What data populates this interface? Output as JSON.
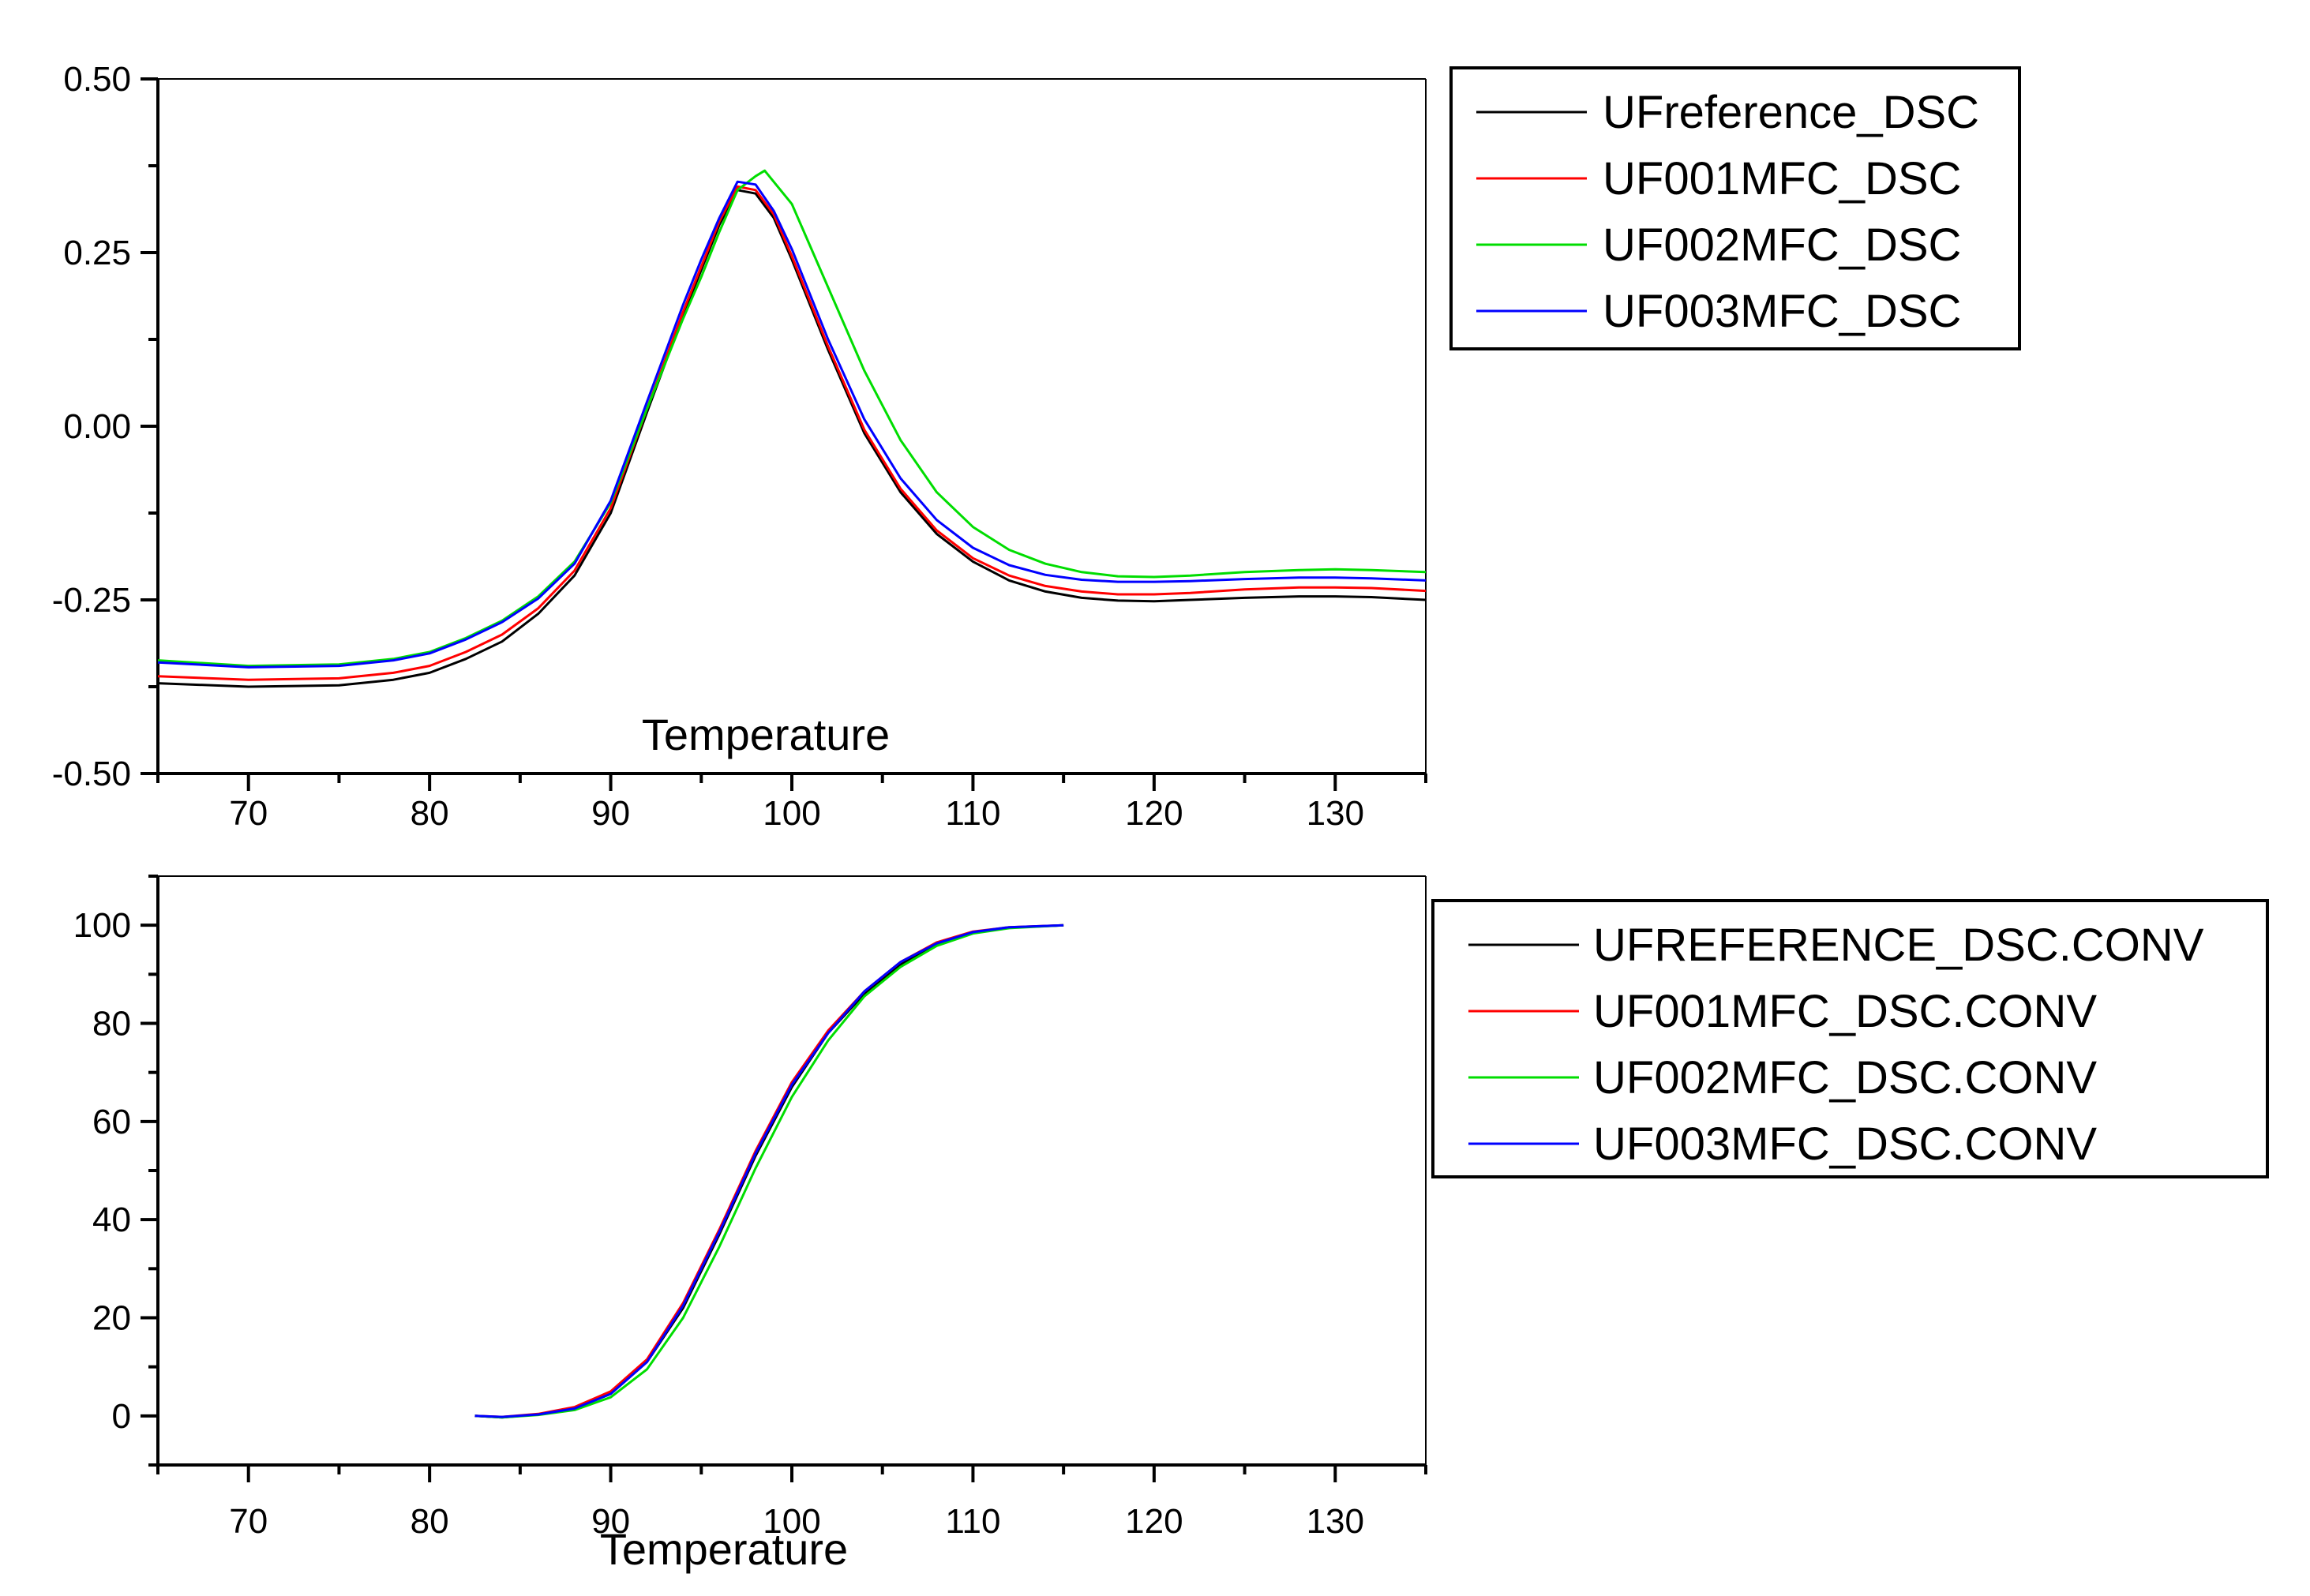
{
  "chart_data": [
    {
      "type": "line",
      "id": "dsc",
      "title": "",
      "xlabel": "Temperature",
      "ylabel": "",
      "xlim": [
        65,
        135
      ],
      "ylim": [
        -0.5,
        0.5
      ],
      "x_ticks": [
        70,
        80,
        90,
        100,
        110,
        120,
        130
      ],
      "y_ticks": [
        -0.5,
        -0.25,
        0.0,
        0.25,
        0.5
      ],
      "x_tick_labels": [
        "70",
        "80",
        "90",
        "100",
        "110",
        "120",
        "130"
      ],
      "y_tick_labels": [
        "-0.50",
        "-0.25",
        "0.00",
        "0.25",
        "0.50"
      ],
      "legend_position": "right-top",
      "series": [
        {
          "name": "UFreference_DSC",
          "color": "#000000",
          "x": [
            65,
            70,
            75,
            78,
            80,
            82,
            84,
            86,
            88,
            90,
            92,
            94,
            95,
            96,
            97,
            98,
            99,
            100,
            102,
            104,
            106,
            108,
            110,
            112,
            114,
            116,
            118,
            120,
            122,
            125,
            128,
            130,
            132,
            135
          ],
          "y": [
            -0.37,
            -0.375,
            -0.373,
            -0.365,
            -0.355,
            -0.335,
            -0.31,
            -0.27,
            -0.215,
            -0.125,
            0.02,
            0.16,
            0.225,
            0.29,
            0.34,
            0.335,
            0.3,
            0.24,
            0.11,
            -0.01,
            -0.095,
            -0.155,
            -0.195,
            -0.222,
            -0.238,
            -0.247,
            -0.251,
            -0.252,
            -0.25,
            -0.247,
            -0.245,
            -0.245,
            -0.246,
            -0.25
          ]
        },
        {
          "name": "UF001MFC_DSC",
          "color": "#ff0000",
          "x": [
            65,
            70,
            75,
            78,
            80,
            82,
            84,
            86,
            88,
            90,
            92,
            94,
            95,
            96,
            97,
            98,
            99,
            100,
            102,
            104,
            106,
            108,
            110,
            112,
            114,
            116,
            118,
            120,
            122,
            125,
            128,
            130,
            132,
            135
          ],
          "y": [
            -0.36,
            -0.365,
            -0.363,
            -0.355,
            -0.345,
            -0.325,
            -0.3,
            -0.262,
            -0.208,
            -0.118,
            0.025,
            0.165,
            0.23,
            0.295,
            0.345,
            0.34,
            0.305,
            0.245,
            0.115,
            -0.005,
            -0.09,
            -0.15,
            -0.19,
            -0.215,
            -0.23,
            -0.238,
            -0.242,
            -0.242,
            -0.24,
            -0.235,
            -0.232,
            -0.232,
            -0.233,
            -0.237
          ]
        },
        {
          "name": "UF002MFC_DSC",
          "color": "#00dd00",
          "x": [
            65,
            70,
            75,
            78,
            80,
            82,
            84,
            86,
            88,
            90,
            92,
            94,
            95,
            96,
            97,
            98,
            98.5,
            100,
            102,
            104,
            106,
            108,
            110,
            112,
            114,
            116,
            118,
            120,
            122,
            125,
            128,
            130,
            132,
            135
          ],
          "y": [
            -0.337,
            -0.345,
            -0.343,
            -0.335,
            -0.325,
            -0.305,
            -0.28,
            -0.245,
            -0.195,
            -0.11,
            0.025,
            0.155,
            0.215,
            0.28,
            0.34,
            0.36,
            0.368,
            0.32,
            0.2,
            0.08,
            -0.02,
            -0.095,
            -0.145,
            -0.178,
            -0.198,
            -0.21,
            -0.216,
            -0.217,
            -0.215,
            -0.21,
            -0.207,
            -0.206,
            -0.207,
            -0.21
          ]
        },
        {
          "name": "UF003MFC_DSC",
          "color": "#0000ff",
          "x": [
            65,
            70,
            75,
            78,
            80,
            82,
            84,
            86,
            88,
            90,
            92,
            94,
            95,
            96,
            97,
            98,
            99,
            100,
            102,
            104,
            106,
            108,
            110,
            112,
            114,
            116,
            118,
            120,
            122,
            125,
            128,
            130,
            132,
            135
          ],
          "y": [
            -0.34,
            -0.347,
            -0.345,
            -0.337,
            -0.327,
            -0.307,
            -0.282,
            -0.248,
            -0.198,
            -0.107,
            0.035,
            0.175,
            0.24,
            0.3,
            0.352,
            0.348,
            0.31,
            0.255,
            0.125,
            0.01,
            -0.075,
            -0.135,
            -0.175,
            -0.2,
            -0.214,
            -0.221,
            -0.224,
            -0.224,
            -0.223,
            -0.22,
            -0.218,
            -0.218,
            -0.219,
            -0.222
          ]
        }
      ]
    },
    {
      "type": "line",
      "id": "conv",
      "title": "",
      "xlabel": "Temperature",
      "ylabel": "",
      "xlim": [
        65,
        135
      ],
      "ylim": [
        -10,
        110
      ],
      "x_ticks": [
        70,
        80,
        90,
        100,
        110,
        120,
        130
      ],
      "y_ticks": [
        0,
        20,
        40,
        60,
        80,
        100
      ],
      "x_tick_labels": [
        "70",
        "80",
        "90",
        "100",
        "110",
        "120",
        "130"
      ],
      "y_tick_labels": [
        "0",
        "20",
        "40",
        "60",
        "80",
        "100"
      ],
      "legend_position": "right-middle",
      "series": [
        {
          "name": "UFREFERENCE_DSC.CONV",
          "color": "#000000",
          "x": [
            82.5,
            84,
            86,
            88,
            90,
            92,
            94,
            96,
            98,
            100,
            102,
            104,
            106,
            108,
            110,
            112,
            115
          ],
          "y": [
            0,
            -0.3,
            0.3,
            1.5,
            4.5,
            11,
            22,
            37,
            53,
            67,
            78,
            86,
            92,
            96,
            98.5,
            99.5,
            100
          ]
        },
        {
          "name": "UF001MFC_DSC.CONV",
          "color": "#ff0000",
          "x": [
            82.5,
            84,
            86,
            88,
            90,
            92,
            94,
            96,
            98,
            100,
            102,
            104,
            106,
            108,
            110,
            112,
            115
          ],
          "y": [
            0,
            -0.2,
            0.4,
            1.8,
            5,
            11.5,
            23,
            38,
            54,
            68,
            78.5,
            86.5,
            92.5,
            96.5,
            98.7,
            99.6,
            100
          ]
        },
        {
          "name": "UF002MFC_DSC.CONV",
          "color": "#00dd00",
          "x": [
            82.5,
            84,
            86,
            88,
            90,
            92,
            94,
            96,
            98,
            100,
            102,
            104,
            106,
            108,
            110,
            112,
            115
          ],
          "y": [
            0,
            -0.3,
            0.2,
            1.2,
            3.8,
            9.5,
            20,
            34.5,
            50.5,
            65,
            76.5,
            85.5,
            91.5,
            95.8,
            98.3,
            99.4,
            100
          ]
        },
        {
          "name": "UF003MFC_DSC.CONV",
          "color": "#0000ff",
          "x": [
            82.5,
            84,
            86,
            88,
            90,
            92,
            94,
            96,
            98,
            100,
            102,
            104,
            106,
            108,
            110,
            112,
            115
          ],
          "y": [
            0,
            -0.2,
            0.3,
            1.5,
            4.5,
            11,
            22.5,
            37.5,
            53.5,
            67.5,
            78,
            86.5,
            92.5,
            96.3,
            98.6,
            99.6,
            100
          ]
        }
      ]
    }
  ]
}
